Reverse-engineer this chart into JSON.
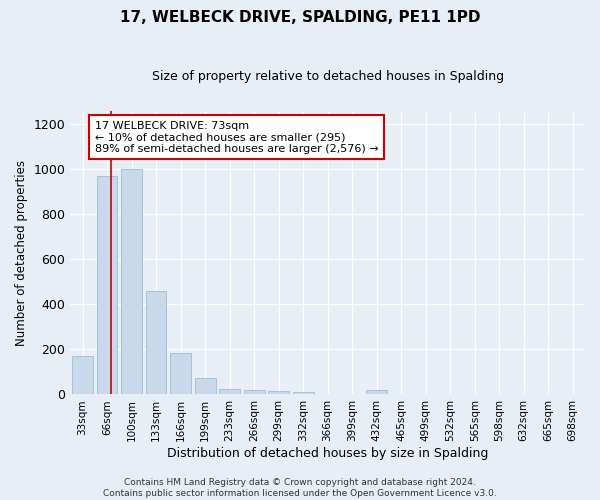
{
  "title": "17, WELBECK DRIVE, SPALDING, PE11 1PD",
  "subtitle": "Size of property relative to detached houses in Spalding",
  "xlabel": "Distribution of detached houses by size in Spalding",
  "ylabel": "Number of detached properties",
  "categories": [
    "33sqm",
    "66sqm",
    "100sqm",
    "133sqm",
    "166sqm",
    "199sqm",
    "233sqm",
    "266sqm",
    "299sqm",
    "332sqm",
    "366sqm",
    "399sqm",
    "432sqm",
    "465sqm",
    "499sqm",
    "532sqm",
    "565sqm",
    "598sqm",
    "632sqm",
    "665sqm",
    "698sqm"
  ],
  "values": [
    170,
    970,
    1000,
    460,
    185,
    72,
    25,
    18,
    14,
    10,
    0,
    0,
    18,
    0,
    0,
    0,
    0,
    0,
    0,
    0,
    0
  ],
  "bar_color": "#c8d9ec",
  "bar_edge_color": "#a0bcd4",
  "red_line_x": 1.18,
  "annotation_text": "17 WELBECK DRIVE: 73sqm\n← 10% of detached houses are smaller (295)\n89% of semi-detached houses are larger (2,576) →",
  "annotation_box_color": "#ffffff",
  "annotation_box_edge": "#cc0000",
  "ylim": [
    0,
    1260
  ],
  "yticks": [
    0,
    200,
    400,
    600,
    800,
    1000,
    1200
  ],
  "background_color": "#e8eef5",
  "grid_color": "#ffffff",
  "footer": "Contains HM Land Registry data © Crown copyright and database right 2024.\nContains public sector information licensed under the Open Government Licence v3.0."
}
